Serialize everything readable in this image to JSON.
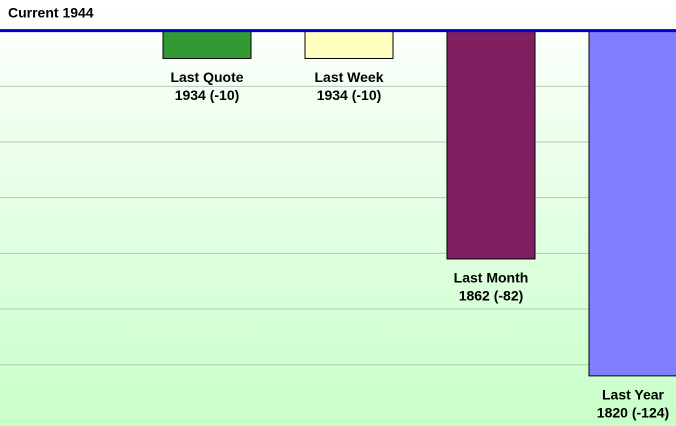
{
  "chart_data": {
    "type": "bar",
    "baseline": 1944,
    "baseline_label": "Current 1944",
    "baseline_color": "#0000cc",
    "categories": [
      "Last Quote",
      "Last Week",
      "Last Month",
      "Last Year"
    ],
    "values": [
      1934,
      1934,
      1862,
      1820
    ],
    "value_labels": [
      "1934 (-10)",
      "1934 (-10)",
      "1862 (-82)",
      "1820 (-124)"
    ],
    "colors": [
      "#339933",
      "#ffffc0",
      "#7f1f5f",
      "#8080ff"
    ],
    "ylim": [
      1802,
      1955
    ],
    "yticks": [
      1824,
      1844,
      1864,
      1884,
      1904,
      1924
    ],
    "grid": true
  }
}
